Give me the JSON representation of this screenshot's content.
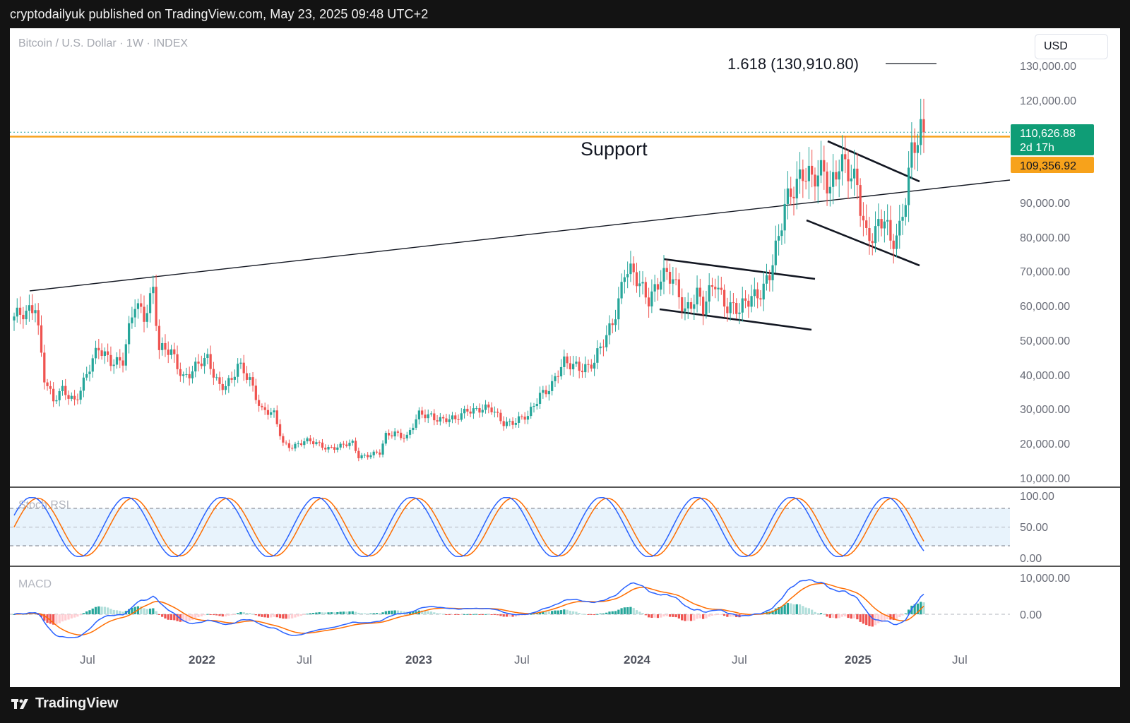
{
  "header": {
    "publish_line": "cryptodailyuk published on TradingView.com, May 23, 2025 09:48 UTC+2"
  },
  "chart": {
    "symbol": "Bitcoin / U.S. Dollar · 1W · INDEX",
    "currency_button": "USD",
    "fib_label": "1.618 (130,910.80)",
    "support_label": "Support",
    "last_price": "110,626.88",
    "countdown": "2d 17h",
    "support_price": "109,356.92",
    "price_ticks": [
      "130,000.00",
      "120,000.00",
      "90,000.00",
      "80,000.00",
      "70,000.00",
      "60,000.00",
      "50,000.00",
      "40,000.00",
      "30,000.00",
      "20,000.00",
      "10,000.00"
    ],
    "time_ticks": [
      "Jul",
      "2022",
      "Jul",
      "2023",
      "Jul",
      "2024",
      "Jul",
      "2025",
      "Jul"
    ],
    "stoch_title": "Stoch RSI",
    "stoch_ticks": [
      "100.00",
      "50.00",
      "0.00"
    ],
    "macd_title": "MACD",
    "macd_ticks": [
      "10,000.00",
      "0.00"
    ],
    "colors": {
      "up": "#26a69a",
      "down": "#ef5350",
      "support": "#f7a21b",
      "last_price_bg": "#0f9d76",
      "k_line": "#2962ff",
      "d_line": "#ff6d00",
      "stoch_band": "#e8f3fc"
    }
  },
  "chart_data": {
    "type": "candlestick",
    "title": "Bitcoin / U.S. Dollar · 1W · INDEX",
    "interval": "1W",
    "ylim": [
      10000,
      135000
    ],
    "x_ticks": [
      "Jul",
      "2022",
      "Jul",
      "2023",
      "Jul",
      "2024",
      "Jul",
      "2025",
      "Jul"
    ],
    "price_path": [
      [
        0,
        57000
      ],
      [
        4,
        56500
      ],
      [
        7,
        61000
      ],
      [
        10,
        40000
      ],
      [
        13,
        32000
      ],
      [
        16,
        35000
      ],
      [
        20,
        33000
      ],
      [
        24,
        40000
      ],
      [
        28,
        47000
      ],
      [
        32,
        45000
      ],
      [
        36,
        44000
      ],
      [
        40,
        60000
      ],
      [
        43,
        58000
      ],
      [
        46,
        66000
      ],
      [
        48,
        47000
      ],
      [
        52,
        46000
      ],
      [
        56,
        40000
      ],
      [
        60,
        42000
      ],
      [
        64,
        44000
      ],
      [
        68,
        37500
      ],
      [
        72,
        38000
      ],
      [
        74,
        42000
      ],
      [
        78,
        39000
      ],
      [
        82,
        30000
      ],
      [
        86,
        28000
      ],
      [
        89,
        20000
      ],
      [
        92,
        19500
      ],
      [
        96,
        20500
      ],
      [
        100,
        20000
      ],
      [
        104,
        19000
      ],
      [
        108,
        19000
      ],
      [
        112,
        20000
      ],
      [
        114,
        16500
      ],
      [
        118,
        17000
      ],
      [
        121,
        17000
      ],
      [
        123,
        22000
      ],
      [
        126,
        23500
      ],
      [
        130,
        22000
      ],
      [
        134,
        28000
      ],
      [
        138,
        28500
      ],
      [
        142,
        27000
      ],
      [
        146,
        26500
      ],
      [
        150,
        30500
      ],
      [
        154,
        30000
      ],
      [
        158,
        29500
      ],
      [
        162,
        26500
      ],
      [
        166,
        26500
      ],
      [
        170,
        27500
      ],
      [
        174,
        35000
      ],
      [
        178,
        37000
      ],
      [
        182,
        43000
      ],
      [
        186,
        43500
      ],
      [
        190,
        42000
      ],
      [
        192,
        43000
      ],
      [
        196,
        51500
      ],
      [
        200,
        62000
      ],
      [
        202,
        70000
      ],
      [
        206,
        67000
      ],
      [
        210,
        63500
      ],
      [
        214,
        68000
      ],
      [
        218,
        67000
      ],
      [
        222,
        60000
      ],
      [
        226,
        63000
      ],
      [
        228,
        58000
      ],
      [
        232,
        68000
      ],
      [
        236,
        60500
      ],
      [
        240,
        57500
      ],
      [
        244,
        63500
      ],
      [
        248,
        66000
      ],
      [
        250,
        68500
      ],
      [
        253,
        78000
      ],
      [
        255,
        90000
      ],
      [
        258,
        97000
      ],
      [
        261,
        98500
      ],
      [
        264,
        94500
      ],
      [
        268,
        101000
      ],
      [
        270,
        96000
      ],
      [
        273,
        101500
      ],
      [
        276,
        97000
      ],
      [
        279,
        95500
      ],
      [
        282,
        82000
      ],
      [
        285,
        81000
      ],
      [
        288,
        84000
      ],
      [
        290,
        78000
      ],
      [
        293,
        84000
      ],
      [
        295,
        94000
      ],
      [
        297,
        104000
      ],
      [
        299,
        106500
      ],
      [
        301,
        110626.88
      ]
    ],
    "levels": [
      {
        "label": "1.618",
        "value": 130910.8
      },
      {
        "label": "Support",
        "value": 109356.92
      },
      {
        "label": "last",
        "value": 110626.88
      }
    ],
    "indicators": {
      "stoch_rsi": {
        "range": [
          0,
          100
        ],
        "bands": [
          20,
          50,
          80
        ]
      },
      "macd": {
        "ticks": [
          0,
          10000
        ]
      }
    }
  }
}
